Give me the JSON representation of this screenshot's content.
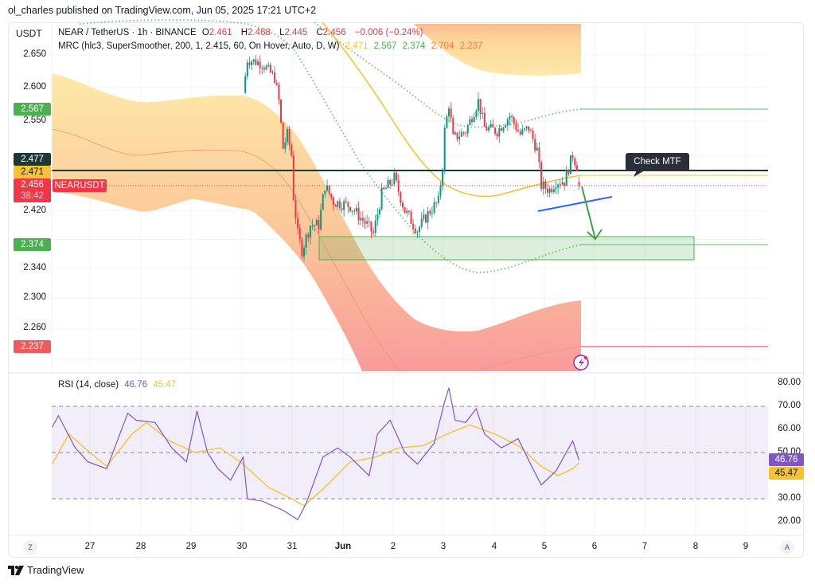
{
  "publish_line": "ol_charles published on TradingView.com, Jun 05, 2025 17:21 UTC+2",
  "currency": "USDT",
  "legend": {
    "symbol": "NEAR / TetherUS · 1h · BINANCE",
    "o_label": "O",
    "o": "2.461",
    "h_label": "H",
    "h": "2.468",
    "l_label": "L",
    "l": "2.445",
    "c_label": "C",
    "c": "2.456",
    "change": "−0.006 (−0.24%)",
    "mrc_label": "MRC (hlc3, SuperSmoother, 200, 1, 2.415, 60, On Hover, Auto, D, W)",
    "mrc_values": [
      "2.471",
      "2.567",
      "2.374",
      "2.704",
      "2.237"
    ]
  },
  "price_badges": {
    "upper": "2.567",
    "level": "2.477",
    "mean": "2.471",
    "last": "2.456",
    "countdown": "38:42",
    "lower": "2.374",
    "outer_lower": "2.237",
    "symbol_tag": "NEARUSDT"
  },
  "annotation": "Check MTF",
  "rsi": {
    "label": "RSI (14, close)",
    "value": "46.76",
    "ma_value": "45.47",
    "ticks": [
      "80.00",
      "70.00",
      "60.00",
      "50.00",
      "30.00",
      "20.00"
    ]
  },
  "x_ticks": [
    "27",
    "28",
    "29",
    "30",
    "31",
    "Jun",
    "2",
    "3",
    "4",
    "5",
    "6",
    "7",
    "8",
    "9"
  ],
  "price_ticks": [
    "2.650",
    "2.600",
    "2.550",
    "2.420",
    "2.340",
    "2.300",
    "2.260"
  ],
  "axis_buttons": {
    "left": "Z",
    "right": "A"
  },
  "brand": "TradingView",
  "colors": {
    "up": "#089981",
    "down": "#f23645",
    "rsi": "#7e57c2",
    "rsi_ma": "#f4c430",
    "level": "#1c3a35",
    "support_zone": "#4caf50",
    "trendline": "#2962ff",
    "arrow": "#43a047"
  },
  "chart_data": [
    {
      "type": "candlestick",
      "title": "NEAR / TetherUS · 1h · BINANCE",
      "price_scale": "log",
      "ylim": [
        2.2,
        2.69
      ],
      "x_range": [
        "2025-05-26T05:00",
        "2025-06-09T23:00"
      ],
      "grid": true,
      "approx_close_path": [
        [
          "2025-05-30T01:00",
          2.592
        ],
        [
          "2025-05-30T03:00",
          2.643
        ],
        [
          "2025-05-30T10:00",
          2.637
        ],
        [
          "2025-05-30T16:00",
          2.615
        ],
        [
          "2025-05-30T18:00",
          2.58
        ],
        [
          "2025-05-30T20:00",
          2.51
        ],
        [
          "2025-05-30T22:00",
          2.53
        ],
        [
          "2025-05-31T00:00",
          2.5
        ],
        [
          "2025-05-31T01:00",
          2.44
        ],
        [
          "2025-05-31T03:00",
          2.387
        ],
        [
          "2025-05-31T05:00",
          2.365
        ],
        [
          "2025-05-31T09:00",
          2.4
        ],
        [
          "2025-05-31T13:00",
          2.4
        ],
        [
          "2025-05-31T16:00",
          2.456
        ],
        [
          "2025-05-31T20:00",
          2.433
        ],
        [
          "2025-06-01T04:00",
          2.427
        ],
        [
          "2025-06-01T12:00",
          2.4
        ],
        [
          "2025-06-01T15:00",
          2.388
        ],
        [
          "2025-06-01T19:00",
          2.444
        ],
        [
          "2025-06-02T01:00",
          2.467
        ],
        [
          "2025-06-02T06:00",
          2.42
        ],
        [
          "2025-06-02T12:00",
          2.393
        ],
        [
          "2025-06-02T18:00",
          2.42
        ],
        [
          "2025-06-02T22:00",
          2.433
        ],
        [
          "2025-06-03T00:00",
          2.484
        ],
        [
          "2025-06-03T01:00",
          2.535
        ],
        [
          "2025-06-03T03:00",
          2.575
        ],
        [
          "2025-06-03T05:00",
          2.524
        ],
        [
          "2025-06-03T11:00",
          2.535
        ],
        [
          "2025-06-03T17:00",
          2.58
        ],
        [
          "2025-06-03T20:00",
          2.54
        ],
        [
          "2025-06-04T02:00",
          2.535
        ],
        [
          "2025-06-04T08:00",
          2.558
        ],
        [
          "2025-06-04T13:00",
          2.53
        ],
        [
          "2025-06-04T17:00",
          2.54
        ],
        [
          "2025-06-04T21:00",
          2.507
        ],
        [
          "2025-06-04T23:00",
          2.456
        ],
        [
          "2025-06-05T03:00",
          2.45
        ],
        [
          "2025-06-05T06:00",
          2.462
        ],
        [
          "2025-06-05T10:00",
          2.462
        ],
        [
          "2025-06-05T14:00",
          2.5
        ],
        [
          "2025-06-05T16:00",
          2.484
        ],
        [
          "2025-06-05T17:00",
          2.456
        ]
      ],
      "last_candle": {
        "open": 2.461,
        "high": 2.468,
        "low": 2.445,
        "close": 2.456
      },
      "levels": {
        "resistance": 2.477,
        "mrc_mean": 2.471,
        "mrc_upper": 2.567,
        "mrc_lower": 2.374,
        "mrc_outer_upper": 2.704,
        "mrc_outer_lower": 2.237
      },
      "support_zone": {
        "from": "2025-05-31T15:00",
        "to": "2025-06-07T22:00",
        "top": 2.392,
        "bottom": 2.352
      },
      "trendline": [
        [
          "2025-06-04T21:00",
          2.423
        ],
        [
          "2025-06-06T08:00",
          2.444
        ]
      ],
      "projection_arrow": [
        [
          "2025-06-05T17:00",
          2.456
        ],
        [
          "2025-06-06T00:00",
          2.385
        ]
      ]
    },
    {
      "type": "line",
      "title": "RSI (14, close)",
      "ylim": [
        15,
        85
      ],
      "bands": [
        70,
        50,
        30
      ],
      "series": [
        {
          "name": "RSI",
          "points": [
            [
              "2025-05-26T06:00",
              61
            ],
            [
              "2025-05-26T09:00",
              66
            ],
            [
              "2025-05-26T17:00",
              52
            ],
            [
              "2025-05-26T23:00",
              46
            ],
            [
              "2025-05-27T08:00",
              43
            ],
            [
              "2025-05-27T18:00",
              67
            ],
            [
              "2025-05-27T22:00",
              64
            ],
            [
              "2025-05-28T07:00",
              63
            ],
            [
              "2025-05-28T15:00",
              52
            ],
            [
              "2025-05-28T22:00",
              46
            ],
            [
              "2025-05-29T03:00",
              68
            ],
            [
              "2025-05-29T08:00",
              50
            ],
            [
              "2025-05-29T13:00",
              43
            ],
            [
              "2025-05-29T19:00",
              38
            ],
            [
              "2025-05-30T01:00",
              48
            ],
            [
              "2025-05-30T03:00",
              30
            ],
            [
              "2025-05-30T10:00",
              29
            ],
            [
              "2025-05-30T20:00",
              25
            ],
            [
              "2025-05-31T03:00",
              21
            ],
            [
              "2025-05-31T07:00",
              28
            ],
            [
              "2025-05-31T15:00",
              48
            ],
            [
              "2025-05-31T22:00",
              52
            ],
            [
              "2025-06-01T04:00",
              48
            ],
            [
              "2025-06-01T13:00",
              40
            ],
            [
              "2025-06-01T17:00",
              58
            ],
            [
              "2025-06-01T23:00",
              64
            ],
            [
              "2025-06-02T06:00",
              50
            ],
            [
              "2025-06-02T12:00",
              45
            ],
            [
              "2025-06-02T20:00",
              54
            ],
            [
              "2025-06-03T01:00",
              72
            ],
            [
              "2025-06-03T03:00",
              78
            ],
            [
              "2025-06-03T06:00",
              64
            ],
            [
              "2025-06-03T11:00",
              63
            ],
            [
              "2025-06-03T16:00",
              69
            ],
            [
              "2025-06-03T20:00",
              58
            ],
            [
              "2025-06-04T04:00",
              52
            ],
            [
              "2025-06-04T12:00",
              56
            ],
            [
              "2025-06-04T19:00",
              43
            ],
            [
              "2025-06-04T23:00",
              36
            ],
            [
              "2025-06-05T06:00",
              42
            ],
            [
              "2025-06-05T14:00",
              55
            ],
            [
              "2025-06-05T17:00",
              46.76
            ]
          ]
        },
        {
          "name": "RSI-based MA",
          "points": [
            [
              "2025-05-26T06:00",
              45
            ],
            [
              "2025-05-26T14:00",
              58
            ],
            [
              "2025-05-27T00:00",
              50
            ],
            [
              "2025-05-27T08:00",
              44
            ],
            [
              "2025-05-27T20:00",
              58
            ],
            [
              "2025-05-28T03:00",
              63
            ],
            [
              "2025-05-28T14:00",
              55
            ],
            [
              "2025-05-29T02:00",
              50
            ],
            [
              "2025-05-29T14:00",
              52
            ],
            [
              "2025-05-30T01:00",
              45
            ],
            [
              "2025-05-30T13:00",
              35
            ],
            [
              "2025-05-31T00:00",
              30
            ],
            [
              "2025-05-31T06:00",
              27
            ],
            [
              "2025-05-31T16:00",
              35
            ],
            [
              "2025-06-01T04:00",
              46
            ],
            [
              "2025-06-01T16:00",
              48
            ],
            [
              "2025-06-02T03:00",
              52
            ],
            [
              "2025-06-02T15:00",
              53
            ],
            [
              "2025-06-03T02:00",
              58
            ],
            [
              "2025-06-03T13:00",
              62
            ],
            [
              "2025-06-04T01:00",
              58
            ],
            [
              "2025-06-04T12:00",
              53
            ],
            [
              "2025-06-04T23:00",
              44
            ],
            [
              "2025-06-05T07:00",
              40
            ],
            [
              "2025-06-05T14:00",
              43
            ],
            [
              "2025-06-05T17:00",
              45.47
            ]
          ]
        }
      ]
    }
  ]
}
